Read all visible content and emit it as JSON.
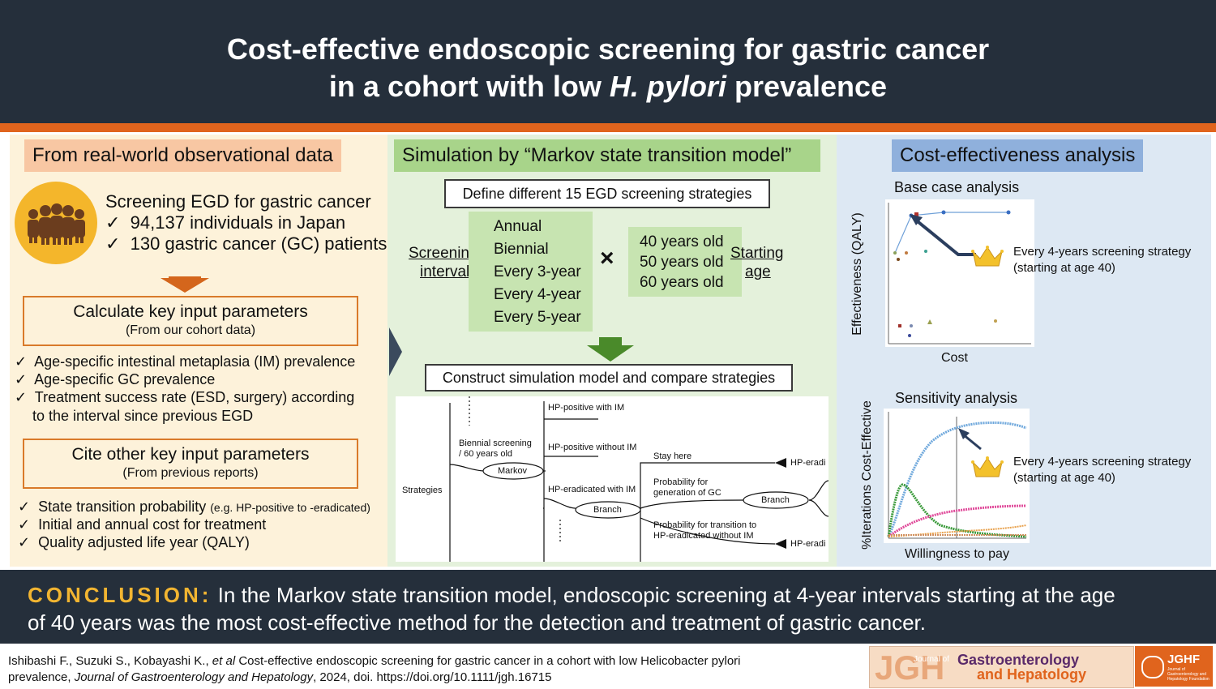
{
  "header": {
    "title_line1": "Cost-effective endoscopic screening for gastric cancer",
    "title_line2_pre": "in a cohort with low ",
    "title_line2_italic": "H. pylori",
    "title_line2_post": " prevalence"
  },
  "left": {
    "title": "From real-world observational data",
    "screening_title": "Screening EGD for gastric cancer",
    "screening_items": [
      "94,137 individuals in Japan",
      "130 gastric cancer (GC) patients"
    ],
    "calc_box": {
      "line1": "Calculate key input parameters",
      "line2": "(From our cohort data)"
    },
    "calc_items": [
      "Age-specific intestinal metaplasia (IM) prevalence",
      "Age-specific GC prevalence",
      "Treatment success rate (ESD, surgery) according",
      "to the interval since previous EGD"
    ],
    "cite_box": {
      "line1": "Cite other key input parameters",
      "line2": "(From previous reports)"
    },
    "cite_items": {
      "item1": "State transition probability",
      "item1_small": "(e.g. HP-positive to -eradicated)",
      "item2": "Initial and annual cost for treatment",
      "item3": "Quality adjusted life year (QALY)"
    },
    "check": "✓"
  },
  "middle": {
    "title": "Simulation by “Markov state transition model”",
    "define_box": "Define different 15 EGD screening strategies",
    "interval_label_1": "Screening",
    "interval_label_2": "interval",
    "intervals": [
      "Annual",
      "Biennial",
      "Every 3-year",
      "Every 4-year",
      "Every 5-year"
    ],
    "times": "×",
    "ages": [
      "40 years old",
      "50 years old",
      "60 years old"
    ],
    "age_label_1": "Starting",
    "age_label_2": "age",
    "construct_box": "Construct simulation model and compare strategies",
    "tree": {
      "strategies": "Strategies",
      "biennial_1": "Biennial screening",
      "biennial_2": "/ 60 years old",
      "markov": "Markov",
      "hp_pos_im": "HP-positive with IM",
      "hp_pos_no_im": "HP-positive without IM",
      "hp_erad_im": "HP-eradicated with IM",
      "branch1": "Branch",
      "stay_here": "Stay here",
      "prob_gc_1": "Probability for",
      "prob_gc_2": "generation of GC",
      "branch2": "Branch",
      "prob_trans_1": "Probability for transition to",
      "prob_trans_2": "HP-eradicated without IM",
      "hp_eradi_1": "HP-eradi",
      "hp_eradi_2": "HP-eradi"
    }
  },
  "right": {
    "title": "Cost-effectiveness analysis",
    "base_title": "Base case analysis",
    "base_ylabel": "Effectiveness (QALY)",
    "base_xlabel": "Cost",
    "callout1_1": "Every 4-years screening strategy",
    "callout1_2": "(starting at age 40)",
    "sens_title": "Sensitivity analysis",
    "sens_ylabel": "%Iterations Cost-Effective",
    "sens_xlabel": "Willingness to pay",
    "callout2_1": "Every 4-years screening strategy",
    "callout2_2": "(starting at age 40)"
  },
  "conclusion": {
    "label": "CONCLUSION:",
    "text_line1": " In the Markov state transition model, endoscopic screening at 4-year intervals starting at the age",
    "text_line2": "of 40 years was the most cost-effective method for the detection and treatment of gastric cancer."
  },
  "footer": {
    "authors": "Ishibashi F., Suzuki S., Kobayashi K., ",
    "et_al": "et al",
    "rest1": " Cost-effective endoscopic screening for gastric cancer in a cohort with low Helicobacter pylori",
    "rest2_pre": "prevalence, ",
    "journal": "Journal of Gastroenterology and Hepatology",
    "rest2_post": ", 2024, doi. https://doi.org/10.1111/jgh.16715",
    "logo_jgh": "JGH",
    "logo_journal_of": "Journal of",
    "logo_line1": "Gastroenterology",
    "logo_line2": "and Hepatology",
    "logo_jghf": "JGHF",
    "logo_jghf_small": "Journal of Gastroenterology and Hepatology Foundation"
  },
  "colors": {
    "header_bg": "#252f3b",
    "accent_orange": "#e0641d",
    "left_bg": "#fdf2da",
    "mid_bg": "#e4f1db",
    "right_bg": "#dde8f3",
    "conclusion_label": "#f2b531",
    "arrow_green": "#4a8a2a",
    "arrow_orange": "#d4661c",
    "arrow_navy": "#2b3e5e"
  },
  "icons": [
    "people-group-icon",
    "down-arrow-icon",
    "chevron-right-icon",
    "crown-icon",
    "pointer-arrow-icon"
  ]
}
